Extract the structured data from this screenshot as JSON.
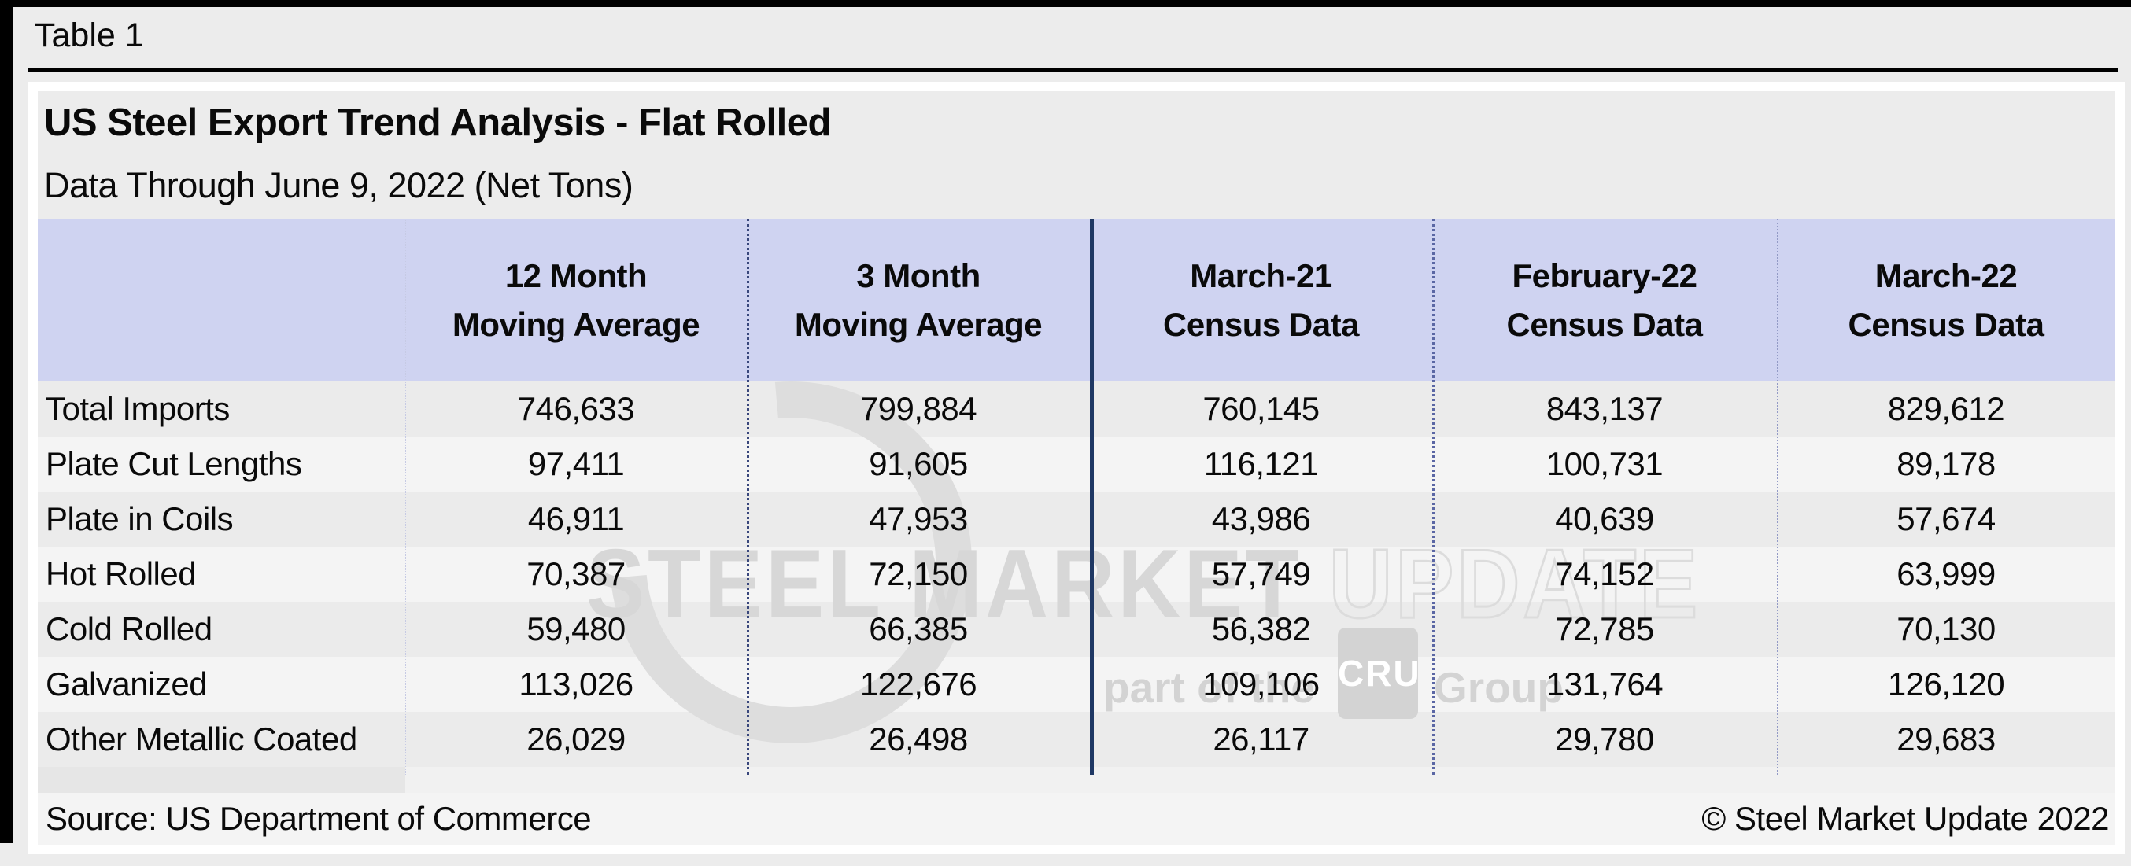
{
  "page": {
    "table_label": "Table 1"
  },
  "panel": {
    "title": "US Steel Export Trend Analysis - Flat Rolled",
    "subtitle": "Data Through June 9, 2022 (Net Tons)"
  },
  "table": {
    "columns": [
      {
        "line1": "12 Month",
        "line2": "Moving Average"
      },
      {
        "line1": "3 Month",
        "line2": "Moving Average"
      },
      {
        "line1": "March-21",
        "line2": "Census Data"
      },
      {
        "line1": "February-22",
        "line2": "Census Data"
      },
      {
        "line1": "March-22",
        "line2": "Census Data"
      }
    ],
    "rows": [
      {
        "label": "Total Imports",
        "values": [
          "746,633",
          "799,884",
          "760,145",
          "843,137",
          "829,612"
        ]
      },
      {
        "label": "Plate Cut Lengths",
        "values": [
          "97,411",
          "91,605",
          "116,121",
          "100,731",
          "89,178"
        ]
      },
      {
        "label": "Plate in Coils",
        "values": [
          "46,911",
          "47,953",
          "43,986",
          "40,639",
          "57,674"
        ]
      },
      {
        "label": "Hot Rolled",
        "values": [
          "70,387",
          "72,150",
          "57,749",
          "74,152",
          "63,999"
        ]
      },
      {
        "label": "Cold Rolled",
        "values": [
          "59,480",
          "66,385",
          "56,382",
          "72,785",
          "70,130"
        ]
      },
      {
        "label": "Galvanized",
        "values": [
          "113,026",
          "122,676",
          "109,106",
          "131,764",
          "126,120"
        ]
      },
      {
        "label": "Other Metallic Coated",
        "values": [
          "26,029",
          "26,498",
          "26,117",
          "29,780",
          "29,683"
        ]
      }
    ]
  },
  "footer": {
    "source": "Source: US Department of Commerce",
    "copyright": "© Steel Market Update 2022"
  },
  "watermark": {
    "text_main": "STEEL MARKET ",
    "text_outline": "UPDATE",
    "part_of": "part of the",
    "cru": "CRU",
    "group": "Group"
  },
  "colors": {
    "page_background": "#ececec",
    "header_lavender": "#cfd3f1",
    "navy_divider": "#1f3864",
    "row_stripes": [
      "#ebebeb",
      "#f4f4f4",
      "#ebebeb",
      "#f4f4f4",
      "#ebebeb",
      "#f4f4f4",
      "#ebebeb"
    ],
    "divider_styles": [
      "1px dotted #c6cae4",
      "3px dotted #39477c",
      "5px solid #1f3864",
      "3px dotted #5a66a4",
      "2px dotted #939ac6"
    ],
    "footer_band": "#f4f4f4",
    "watermark_gray": "#d7d7d7"
  },
  "chart_data": {
    "type": "table",
    "title": "US Steel Export Trend Analysis - Flat Rolled",
    "subtitle": "Data Through June 9, 2022 (Net Tons)",
    "columns": [
      "12 Month Moving Average",
      "3 Month Moving Average",
      "March-21 Census Data",
      "February-22 Census Data",
      "March-22 Census Data"
    ],
    "categories": [
      "Total Imports",
      "Plate Cut Lengths",
      "Plate in Coils",
      "Hot Rolled",
      "Cold Rolled",
      "Galvanized",
      "Other Metallic Coated"
    ],
    "series": [
      {
        "name": "12 Month Moving Average",
        "values": [
          746633,
          97411,
          46911,
          70387,
          59480,
          113026,
          26029
        ]
      },
      {
        "name": "3 Month Moving Average",
        "values": [
          799884,
          91605,
          47953,
          72150,
          66385,
          122676,
          26498
        ]
      },
      {
        "name": "March-21 Census Data",
        "values": [
          760145,
          116121,
          43986,
          57749,
          56382,
          109106,
          26117
        ]
      },
      {
        "name": "February-22 Census Data",
        "values": [
          843137,
          100731,
          40639,
          74152,
          72785,
          131764,
          29780
        ]
      },
      {
        "name": "March-22 Census Data",
        "values": [
          829612,
          89178,
          57674,
          63999,
          70130,
          126120,
          29683
        ]
      }
    ],
    "source": "Source: US Department of Commerce"
  }
}
